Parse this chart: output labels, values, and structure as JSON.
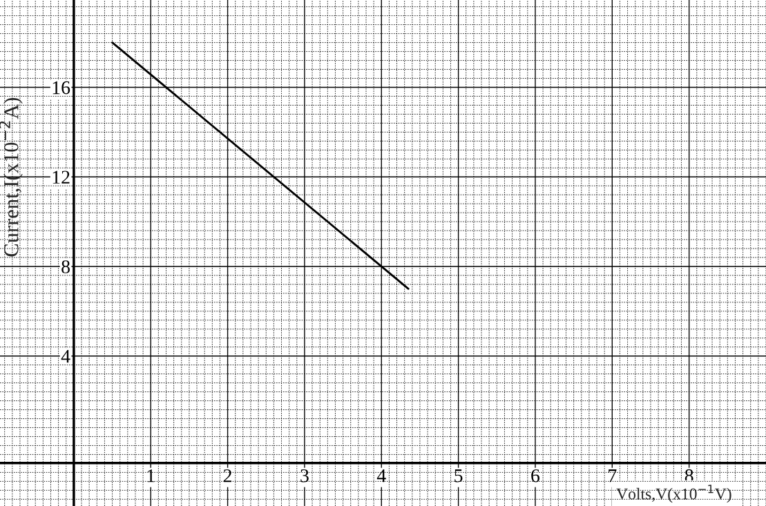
{
  "chart_data": {
    "type": "line",
    "xlabel": "Volts,V(x10$^{−1}$V)",
    "ylabel": "Current,I(x10$^{−2}$A)",
    "x": [
      0.5,
      4.35
    ],
    "series": [
      {
        "color": "#000000",
        "values": [
          18,
          7
        ]
      }
    ],
    "xlim": [
      -0.96,
      9.0
    ],
    "ylim": [
      -2.7,
      19.9
    ],
    "xticks": [
      1,
      2,
      3,
      4,
      5,
      6,
      7,
      8
    ],
    "yticks": [
      4,
      8,
      12,
      16
    ],
    "grid": true,
    "marker": "none",
    "line_style": "solid",
    "legend": false
  }
}
